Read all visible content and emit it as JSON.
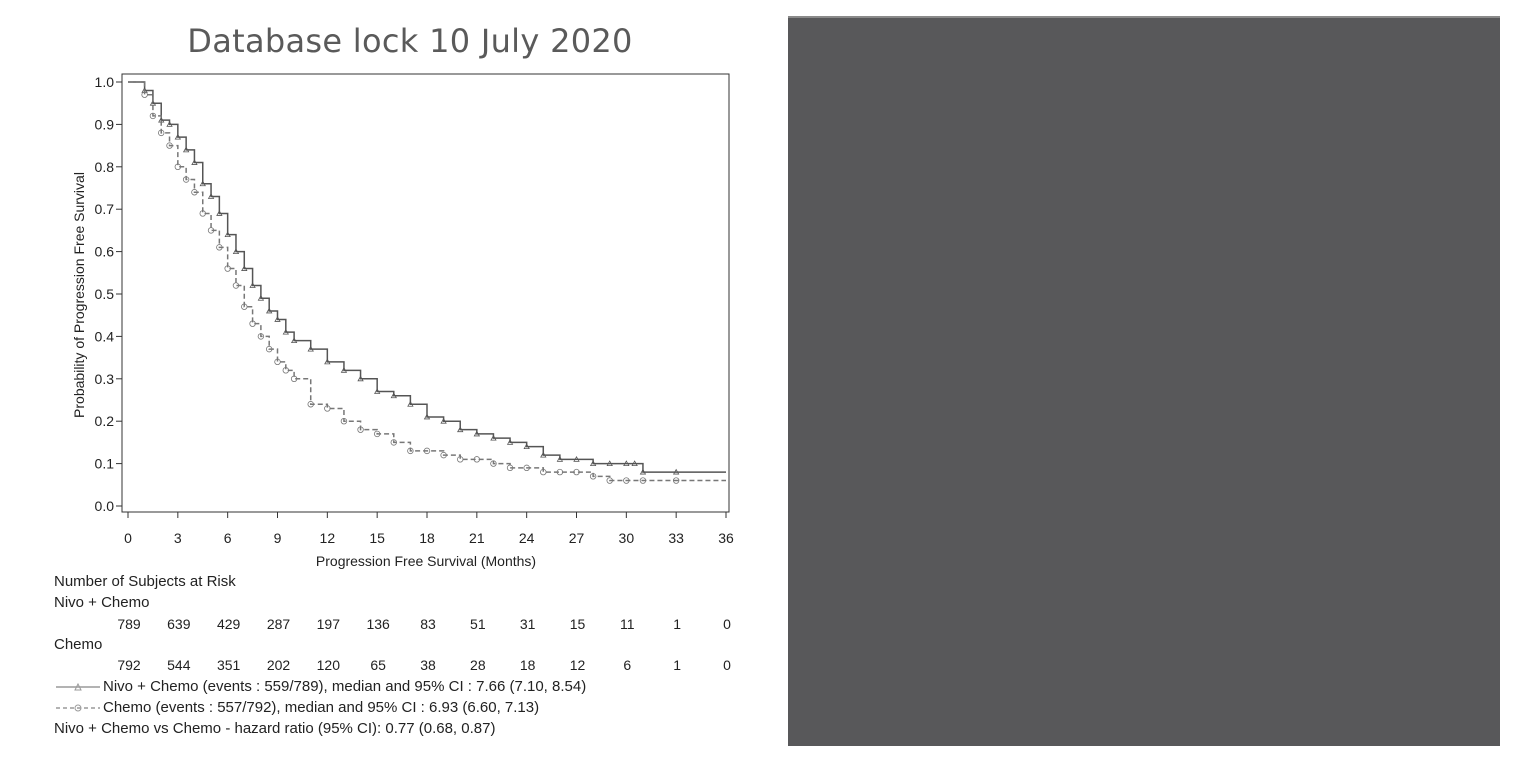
{
  "title": "Database lock 10 July 2020",
  "chart_data": {
    "type": "line",
    "xlabel": "Progression Free Survival (Months)",
    "ylabel": "Probability of Progression Free Survival",
    "xlim": [
      0,
      36
    ],
    "ylim": [
      0,
      1.0
    ],
    "x_ticks": [
      "0",
      "3",
      "6",
      "9",
      "12",
      "15",
      "18",
      "21",
      "24",
      "27",
      "30",
      "33",
      "36"
    ],
    "y_ticks": [
      "0.0",
      "0.1",
      "0.2",
      "0.3",
      "0.4",
      "0.5",
      "0.6",
      "0.7",
      "0.8",
      "0.9",
      "1.0"
    ],
    "grid": false,
    "series": [
      {
        "name": "Nivo + Chemo",
        "line_style": "solid",
        "marker": "triangle",
        "x": [
          0,
          1,
          1.5,
          2,
          2.5,
          3,
          3.5,
          4,
          4.5,
          5,
          5.5,
          6,
          6.5,
          7,
          7.5,
          8,
          8.5,
          9,
          9.5,
          10,
          11,
          12,
          13,
          14,
          15,
          16,
          17,
          18,
          19,
          20,
          21,
          22,
          23,
          24,
          25,
          26,
          27,
          28,
          29,
          30,
          30.5,
          31,
          33,
          36
        ],
        "y": [
          1.0,
          0.98,
          0.95,
          0.91,
          0.9,
          0.87,
          0.84,
          0.81,
          0.76,
          0.73,
          0.69,
          0.64,
          0.6,
          0.56,
          0.52,
          0.49,
          0.46,
          0.44,
          0.41,
          0.39,
          0.37,
          0.34,
          0.32,
          0.3,
          0.27,
          0.26,
          0.24,
          0.21,
          0.2,
          0.18,
          0.17,
          0.16,
          0.15,
          0.14,
          0.12,
          0.11,
          0.11,
          0.1,
          0.1,
          0.1,
          0.1,
          0.08,
          0.08,
          0.08
        ]
      },
      {
        "name": "Chemo",
        "line_style": "dashed",
        "marker": "circle",
        "x": [
          0,
          1,
          1.5,
          2,
          2.5,
          3,
          3.5,
          4,
          4.5,
          5,
          5.5,
          6,
          6.5,
          7,
          7.5,
          8,
          8.5,
          9,
          9.5,
          10,
          11,
          12,
          13,
          14,
          15,
          16,
          17,
          18,
          19,
          20,
          21,
          22,
          23,
          24,
          25,
          26,
          27,
          28,
          29,
          30,
          31,
          33,
          36
        ],
        "y": [
          1.0,
          0.97,
          0.92,
          0.88,
          0.85,
          0.8,
          0.77,
          0.74,
          0.69,
          0.65,
          0.61,
          0.56,
          0.52,
          0.47,
          0.43,
          0.4,
          0.37,
          0.34,
          0.32,
          0.3,
          0.24,
          0.23,
          0.2,
          0.18,
          0.17,
          0.15,
          0.13,
          0.13,
          0.12,
          0.11,
          0.11,
          0.1,
          0.09,
          0.09,
          0.08,
          0.08,
          0.08,
          0.07,
          0.06,
          0.06,
          0.06,
          0.06,
          0.06
        ]
      }
    ],
    "at_risk": {
      "heading": "Number of Subjects at Risk",
      "groups": [
        {
          "name": "Nivo + Chemo",
          "counts": [
            "789",
            "639",
            "429",
            "287",
            "197",
            "136",
            "83",
            "51",
            "31",
            "15",
            "11",
            "1",
            "0"
          ]
        },
        {
          "name": "Chemo",
          "counts": [
            "792",
            "544",
            "351",
            "202",
            "120",
            "65",
            "38",
            "28",
            "18",
            "12",
            "6",
            "1",
            "0"
          ]
        }
      ]
    },
    "legend": [
      "Nivo + Chemo (events : 559/789), median and 95% CI : 7.66 (7.10, 8.54)",
      "Chemo (events : 557/792), median and 95% CI : 6.93 (6.60, 7.13)"
    ],
    "hazard_ratio": "Nivo + Chemo vs Chemo - hazard ratio (95% CI): 0.77 (0.68, 0.87)"
  },
  "colors": {
    "nivo": "#555555",
    "chemo": "#777777",
    "panel": "#58585a"
  }
}
